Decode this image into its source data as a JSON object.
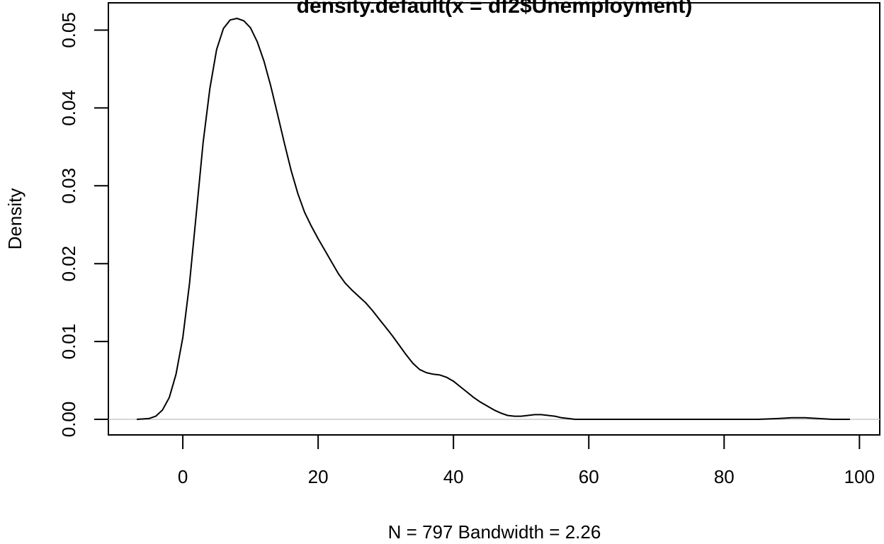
{
  "chart_data": {
    "type": "line",
    "title": "density.default(x = df2$Unemployment)",
    "xlabel": "N = 797   Bandwidth = 2.26",
    "ylabel": "Density",
    "xlim": [
      -11,
      103
    ],
    "ylim": [
      -0.002,
      0.0535
    ],
    "x_ticks": [
      0,
      20,
      40,
      60,
      80,
      100
    ],
    "y_ticks": [
      0.0,
      0.01,
      0.02,
      0.03,
      0.04,
      0.05
    ],
    "x_tick_labels": [
      "0",
      "20",
      "40",
      "60",
      "80",
      "100"
    ],
    "y_tick_labels": [
      "0.00",
      "0.01",
      "0.02",
      "0.03",
      "0.04",
      "0.05"
    ],
    "grid": false,
    "baseline": {
      "y": 0,
      "color": "#c8c8c8"
    },
    "line_color": "#000000",
    "series": [
      {
        "x": [
          -6.8,
          -5,
          -4,
          -3,
          -2,
          -1,
          0,
          1,
          2,
          3,
          4,
          5,
          6,
          7,
          8,
          9,
          10,
          11,
          12,
          13,
          14,
          15,
          16,
          17,
          18,
          19,
          20,
          21,
          22,
          23,
          24,
          25,
          26,
          27,
          28,
          29,
          30,
          31,
          32,
          33,
          34,
          35,
          36,
          37,
          38,
          39,
          40,
          41,
          42,
          43,
          44,
          45,
          46,
          47,
          48,
          49,
          50,
          51,
          52,
          53,
          54,
          55,
          56,
          57,
          58,
          60,
          70,
          80,
          85,
          88,
          90,
          92,
          94,
          96,
          98.6
        ],
        "y": [
          0.0,
          0.0001,
          0.0004,
          0.0012,
          0.0028,
          0.0058,
          0.0105,
          0.0175,
          0.0265,
          0.0355,
          0.0425,
          0.0475,
          0.0502,
          0.0513,
          0.0515,
          0.0512,
          0.0503,
          0.0485,
          0.046,
          0.0428,
          0.0392,
          0.0355,
          0.032,
          0.029,
          0.0266,
          0.0248,
          0.0232,
          0.0217,
          0.0202,
          0.0187,
          0.0175,
          0.0166,
          0.0158,
          0.015,
          0.014,
          0.0129,
          0.0118,
          0.0107,
          0.0095,
          0.0083,
          0.0072,
          0.0064,
          0.006,
          0.0058,
          0.0057,
          0.0054,
          0.0049,
          0.0042,
          0.0035,
          0.0028,
          0.0022,
          0.0017,
          0.0012,
          0.0008,
          0.0005,
          0.0004,
          0.0004,
          0.0005,
          0.0006,
          0.0006,
          0.0005,
          0.0004,
          0.0002,
          0.0001,
          0.0,
          0.0,
          0.0,
          0.0,
          0.0,
          0.0001,
          0.0002,
          0.0002,
          0.0001,
          0.0,
          0.0
        ]
      }
    ]
  }
}
